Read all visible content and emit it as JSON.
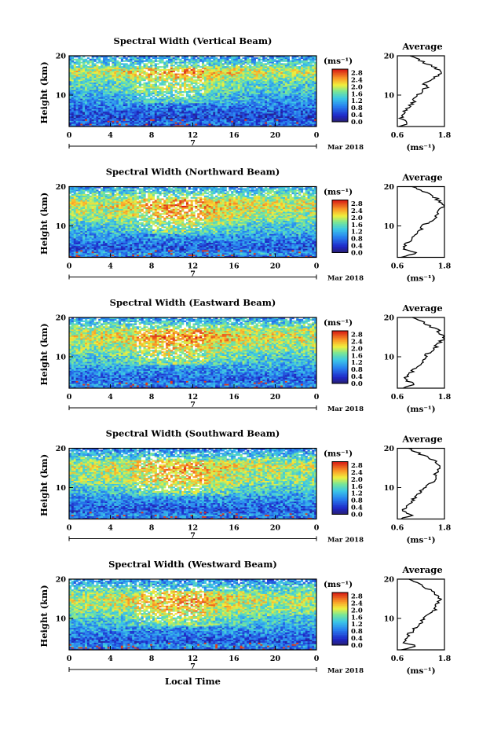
{
  "chart_data": [
    {
      "type": "heatmap",
      "title": "Spectral Width (Vertical Beam)",
      "xlabel": "",
      "ylabel": "Height (km)",
      "xlim": [
        0,
        24
      ],
      "ylim": [
        2,
        20
      ],
      "xticks": [
        "0",
        "4",
        "8",
        "12",
        "16",
        "20",
        "0"
      ],
      "yticks": [
        "20",
        "10"
      ],
      "timeline_label": "7",
      "date_label": "Mar 2018",
      "colorbar": {
        "unit": "(ms⁻¹)",
        "ticks": [
          "2.8",
          "2.4",
          "2.0",
          "1.6",
          "1.2",
          "0.8",
          "0.4",
          "0.0"
        ],
        "range": [
          0,
          3.0
        ]
      },
      "average_profile": {
        "title": "Average",
        "xlabel": "(ms⁻¹)",
        "xticks": [
          "0.6",
          "1.8"
        ],
        "yticks": [
          "20",
          "10"
        ],
        "xlim": [
          0.6,
          1.8
        ],
        "height": [
          2,
          3,
          4,
          5,
          6,
          7,
          8,
          9,
          10,
          11,
          12,
          13,
          14,
          15,
          16,
          17,
          18,
          19,
          20
        ],
        "value": [
          0.65,
          0.9,
          0.7,
          0.72,
          0.8,
          0.9,
          1.0,
          1.05,
          1.1,
          1.25,
          1.35,
          1.3,
          1.45,
          1.65,
          1.75,
          1.55,
          1.35,
          1.15,
          0.95
        ]
      }
    },
    {
      "type": "heatmap",
      "title": "Spectral Width (Northward Beam)",
      "xlabel": "",
      "ylabel": "Height (km)",
      "xlim": [
        0,
        24
      ],
      "ylim": [
        2,
        20
      ],
      "xticks": [
        "0",
        "4",
        "8",
        "12",
        "16",
        "20",
        "0"
      ],
      "yticks": [
        "20",
        "10"
      ],
      "timeline_label": "7",
      "date_label": "Mar 2018",
      "colorbar": {
        "unit": "(ms⁻¹)",
        "ticks": [
          "2.8",
          "2.4",
          "2.0",
          "1.6",
          "1.2",
          "0.8",
          "0.4",
          "0.0"
        ],
        "range": [
          0,
          3.0
        ]
      },
      "average_profile": {
        "title": "Average",
        "xlabel": "(ms⁻¹)",
        "xticks": [
          "0.6",
          "1.8"
        ],
        "yticks": [
          "20",
          "10"
        ],
        "xlim": [
          0.6,
          1.8
        ],
        "height": [
          2,
          3,
          4,
          5,
          6,
          7,
          8,
          9,
          10,
          11,
          12,
          13,
          14,
          15,
          16,
          17,
          18,
          19,
          20
        ],
        "value": [
          0.7,
          1.1,
          0.75,
          0.8,
          0.9,
          1.0,
          1.1,
          1.2,
          1.25,
          1.4,
          1.55,
          1.6,
          1.65,
          1.75,
          1.7,
          1.6,
          1.45,
          1.25,
          1.0
        ]
      }
    },
    {
      "type": "heatmap",
      "title": "Spectral Width (Eastward Beam)",
      "xlabel": "",
      "ylabel": "Height (km)",
      "xlim": [
        0,
        24
      ],
      "ylim": [
        2,
        20
      ],
      "xticks": [
        "0",
        "4",
        "8",
        "12",
        "16",
        "20",
        "0"
      ],
      "yticks": [
        "20",
        "10"
      ],
      "timeline_label": "7",
      "date_label": "Mar 2018",
      "colorbar": {
        "unit": "(ms⁻¹)",
        "ticks": [
          "2.8",
          "2.4",
          "2.0",
          "1.6",
          "1.2",
          "0.8",
          "0.4",
          "0.0"
        ],
        "range": [
          0,
          3.0
        ]
      },
      "average_profile": {
        "title": "Average",
        "xlabel": "(ms⁻¹)",
        "xticks": [
          "0.6",
          "1.8"
        ],
        "yticks": [
          "20",
          "10"
        ],
        "xlim": [
          0.6,
          1.8
        ],
        "height": [
          2,
          3,
          4,
          5,
          6,
          7,
          8,
          9,
          10,
          11,
          12,
          13,
          14,
          15,
          16,
          17,
          18,
          19,
          20
        ],
        "value": [
          0.75,
          1.05,
          0.8,
          0.85,
          0.95,
          1.05,
          1.15,
          1.25,
          1.3,
          1.4,
          1.55,
          1.6,
          1.7,
          1.8,
          1.7,
          1.6,
          1.4,
          1.2,
          1.0
        ]
      }
    },
    {
      "type": "heatmap",
      "title": "Spectral Width (Southward Beam)",
      "xlabel": "",
      "ylabel": "Height (km)",
      "xlim": [
        0,
        24
      ],
      "ylim": [
        2,
        20
      ],
      "xticks": [
        "0",
        "4",
        "8",
        "12",
        "16",
        "20",
        "0"
      ],
      "yticks": [
        "20",
        "10"
      ],
      "timeline_label": "7",
      "date_label": "Mar 2018",
      "colorbar": {
        "unit": "(ms⁻¹)",
        "ticks": [
          "2.8",
          "2.4",
          "2.0",
          "1.6",
          "1.2",
          "0.8",
          "0.4",
          "0.0"
        ],
        "range": [
          0,
          3.0
        ]
      },
      "average_profile": {
        "title": "Average",
        "xlabel": "(ms⁻¹)",
        "xticks": [
          "0.6",
          "1.8"
        ],
        "yticks": [
          "20",
          "10"
        ],
        "xlim": [
          0.6,
          1.8
        ],
        "height": [
          2,
          3,
          4,
          5,
          6,
          7,
          8,
          9,
          10,
          11,
          12,
          13,
          14,
          15,
          16,
          17,
          18,
          19,
          20
        ],
        "value": [
          0.7,
          1.0,
          0.75,
          0.8,
          0.9,
          1.0,
          1.1,
          1.2,
          1.3,
          1.45,
          1.6,
          1.55,
          1.6,
          1.7,
          1.65,
          1.5,
          1.3,
          1.1,
          0.9
        ]
      }
    },
    {
      "type": "heatmap",
      "title": "Spectral Width (Westward Beam)",
      "xlabel": "Local Time",
      "ylabel": "Height (km)",
      "xlim": [
        0,
        24
      ],
      "ylim": [
        2,
        20
      ],
      "xticks": [
        "0",
        "4",
        "8",
        "12",
        "16",
        "20",
        "0"
      ],
      "yticks": [
        "20",
        "10"
      ],
      "timeline_label": "7",
      "date_label": "Mar 2018",
      "colorbar": {
        "unit": "(ms⁻¹)",
        "ticks": [
          "2.8",
          "2.4",
          "2.0",
          "1.6",
          "1.2",
          "0.8",
          "0.4",
          "0.0"
        ],
        "range": [
          0,
          3.0
        ]
      },
      "average_profile": {
        "title": "Average",
        "xlabel": "(ms⁻¹)",
        "xticks": [
          "0.6",
          "1.8"
        ],
        "yticks": [
          "20",
          "10"
        ],
        "xlim": [
          0.6,
          1.8
        ],
        "height": [
          2,
          3,
          4,
          5,
          6,
          7,
          8,
          9,
          10,
          11,
          12,
          13,
          14,
          15,
          16,
          17,
          18,
          19,
          20
        ],
        "value": [
          0.7,
          1.05,
          0.75,
          0.8,
          0.9,
          1.0,
          1.1,
          1.2,
          1.25,
          1.4,
          1.55,
          1.6,
          1.65,
          1.7,
          1.6,
          1.45,
          1.3,
          1.1,
          0.9
        ]
      }
    }
  ]
}
